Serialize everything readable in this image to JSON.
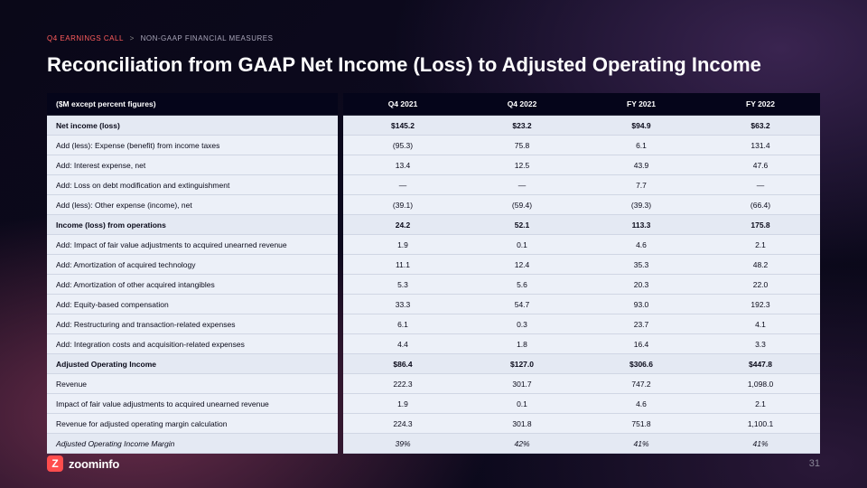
{
  "breadcrumb": {
    "part1": "Q4 EARNINGS CALL",
    "sep": ">",
    "part2": "NON-GAAP FINANCIAL MEASURES"
  },
  "title": "Reconciliation from GAAP Net Income (Loss) to Adjusted Operating Income",
  "table": {
    "label_header": "($M except percent figures)",
    "columns": [
      "Q4 2021",
      "Q4 2022",
      "FY 2021",
      "FY 2022"
    ],
    "rows": [
      {
        "label": "Net income (loss)",
        "vals": [
          "$145.2",
          "$23.2",
          "$94.9",
          "$63.2"
        ],
        "style": "bold"
      },
      {
        "label": "Add (less): Expense (benefit) from income taxes",
        "vals": [
          "(95.3)",
          "75.8",
          "6.1",
          "131.4"
        ],
        "style": ""
      },
      {
        "label": "Add: Interest expense, net",
        "vals": [
          "13.4",
          "12.5",
          "43.9",
          "47.6"
        ],
        "style": ""
      },
      {
        "label": "Add: Loss on debt modification and extinguishment",
        "vals": [
          "—",
          "—",
          "7.7",
          "—"
        ],
        "style": ""
      },
      {
        "label": "Add (less): Other expense (income), net",
        "vals": [
          "(39.1)",
          "(59.4)",
          "(39.3)",
          "(66.4)"
        ],
        "style": ""
      },
      {
        "label": "Income (loss) from operations",
        "vals": [
          "24.2",
          "52.1",
          "113.3",
          "175.8"
        ],
        "style": "bold"
      },
      {
        "label": "Add: Impact of fair value adjustments to acquired unearned revenue",
        "vals": [
          "1.9",
          "0.1",
          "4.6",
          "2.1"
        ],
        "style": ""
      },
      {
        "label": "Add: Amortization of acquired technology",
        "vals": [
          "11.1",
          "12.4",
          "35.3",
          "48.2"
        ],
        "style": ""
      },
      {
        "label": "Add: Amortization of other acquired intangibles",
        "vals": [
          "5.3",
          "5.6",
          "20.3",
          "22.0"
        ],
        "style": ""
      },
      {
        "label": "Add: Equity-based compensation",
        "vals": [
          "33.3",
          "54.7",
          "93.0",
          "192.3"
        ],
        "style": ""
      },
      {
        "label": "Add: Restructuring and transaction-related expenses",
        "vals": [
          "6.1",
          "0.3",
          "23.7",
          "4.1"
        ],
        "style": ""
      },
      {
        "label": "Add: Integration costs and acquisition-related expenses",
        "vals": [
          "4.4",
          "1.8",
          "16.4",
          "3.3"
        ],
        "style": ""
      },
      {
        "label": "Adjusted Operating Income",
        "vals": [
          "$86.4",
          "$127.0",
          "$306.6",
          "$447.8"
        ],
        "style": "bold"
      },
      {
        "label": "Revenue",
        "vals": [
          "222.3",
          "301.7",
          "747.2",
          "1,098.0"
        ],
        "style": ""
      },
      {
        "label": "Impact of fair value adjustments to acquired unearned revenue",
        "vals": [
          "1.9",
          "0.1",
          "4.6",
          "2.1"
        ],
        "style": ""
      },
      {
        "label": "Revenue for adjusted operating margin calculation",
        "vals": [
          "224.3",
          "301.8",
          "751.8",
          "1,100.1"
        ],
        "style": ""
      },
      {
        "label": "Adjusted Operating Income Margin",
        "vals": [
          "39%",
          "42%",
          "41%",
          "41%"
        ],
        "style": "italic"
      }
    ]
  },
  "logo": {
    "mark": "Z",
    "text": "zoominfo"
  },
  "page_number": "31",
  "colors": {
    "accent_red": "#ff4d4d",
    "breadcrumb_red": "#ff5c5c",
    "header_bg": "#05051a",
    "row_bg": "#ecf0f8",
    "row_bold_bg": "#e4e9f3",
    "row_border": "#d0d6e4",
    "page_num": "#8a8798"
  }
}
